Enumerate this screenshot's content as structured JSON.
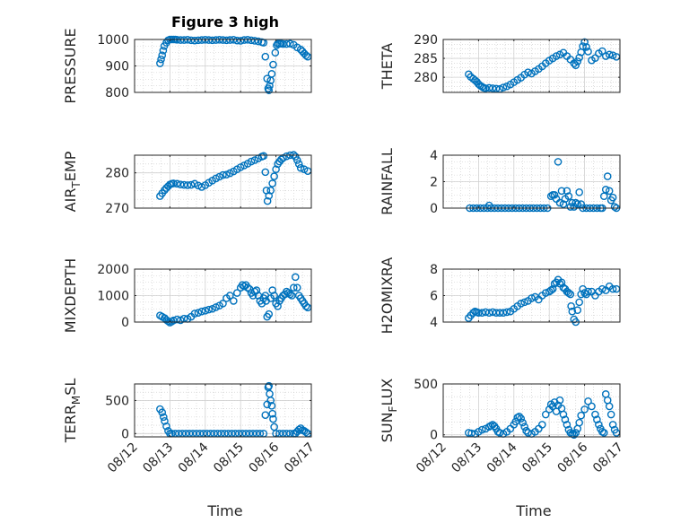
{
  "figure": {
    "title": "Figure 3 high",
    "xlabel": "Time"
  },
  "x_tick_labels": [
    "08/12",
    "08/13",
    "08/14",
    "08/15",
    "08/16",
    "08/17"
  ],
  "marker_color": "#0072BD",
  "chart_data": [
    {
      "type": "scatter",
      "ylabel": "PRESSURE",
      "ylabel_sub": "",
      "ylabel_suffix": "",
      "ylim": [
        800,
        1000
      ],
      "yticks": [
        800,
        900,
        1000
      ],
      "xlim": [
        0,
        5
      ],
      "x": [
        0.72,
        0.75,
        0.78,
        0.81,
        0.84,
        0.9,
        0.95,
        1.0,
        1.05,
        1.1,
        1.15,
        1.2,
        1.3,
        1.4,
        1.5,
        1.6,
        1.7,
        1.8,
        1.9,
        2.0,
        2.1,
        2.2,
        2.3,
        2.4,
        2.5,
        2.6,
        2.7,
        2.8,
        2.9,
        3.0,
        3.1,
        3.2,
        3.3,
        3.4,
        3.5,
        3.6,
        3.65,
        3.7,
        3.75,
        3.78,
        3.8,
        3.82,
        3.85,
        3.88,
        3.92,
        3.98,
        4.02,
        4.05,
        4.1,
        4.15,
        4.2,
        4.3,
        4.4,
        4.5,
        4.6,
        4.7,
        4.75,
        4.8,
        4.85,
        4.9
      ],
      "y": [
        910,
        925,
        940,
        958,
        975,
        988,
        997,
        1000,
        1000,
        1000,
        1000,
        999,
        998,
        998,
        999,
        997,
        996,
        997,
        998,
        999,
        998,
        997,
        998,
        999,
        998,
        997,
        998,
        999,
        996,
        995,
        998,
        999,
        997,
        995,
        993,
        990,
        988,
        935,
        852,
        815,
        808,
        825,
        845,
        870,
        905,
        950,
        978,
        984,
        984,
        984,
        983,
        983,
        984,
        980,
        970,
        962,
        955,
        947,
        940,
        935
      ]
    },
    {
      "type": "scatter",
      "ylabel": "THETA",
      "ylabel_sub": "",
      "ylabel_suffix": "",
      "ylim": [
        276,
        290
      ],
      "yticks": [
        280,
        285,
        290
      ],
      "xlim": [
        0,
        5
      ],
      "x": [
        0.72,
        0.78,
        0.85,
        0.9,
        0.95,
        1.0,
        1.05,
        1.1,
        1.15,
        1.2,
        1.3,
        1.4,
        1.5,
        1.6,
        1.7,
        1.8,
        1.9,
        2.0,
        2.1,
        2.2,
        2.3,
        2.4,
        2.5,
        2.6,
        2.7,
        2.8,
        2.9,
        3.0,
        3.1,
        3.2,
        3.3,
        3.4,
        3.5,
        3.6,
        3.7,
        3.75,
        3.8,
        3.85,
        3.9,
        3.95,
        4.0,
        4.05,
        4.1,
        4.2,
        4.3,
        4.4,
        4.5,
        4.6,
        4.7,
        4.8,
        4.9
      ],
      "y": [
        280.8,
        280.1,
        279.6,
        279.2,
        278.8,
        278.2,
        277.8,
        277.5,
        277.2,
        277.1,
        277.2,
        277.1,
        277.0,
        276.9,
        277.3,
        277.6,
        278.1,
        278.7,
        279.3,
        279.9,
        280.7,
        281.3,
        281.0,
        281.6,
        282.2,
        282.9,
        283.7,
        284.4,
        285.0,
        285.6,
        286.0,
        286.5,
        285.6,
        284.7,
        283.7,
        283.2,
        284.2,
        285.2,
        286.6,
        288.2,
        289.3,
        288.0,
        286.8,
        284.5,
        285.1,
        286.3,
        286.9,
        285.6,
        286.0,
        285.8,
        285.4
      ]
    },
    {
      "type": "scatter",
      "ylabel": "AIR",
      "ylabel_sub": "T",
      "ylabel_suffix": "EMP",
      "ylim": [
        270,
        285
      ],
      "yticks": [
        270,
        280
      ],
      "xlim": [
        0,
        5
      ],
      "x": [
        0.72,
        0.78,
        0.85,
        0.9,
        0.95,
        1.0,
        1.05,
        1.1,
        1.2,
        1.3,
        1.4,
        1.5,
        1.6,
        1.7,
        1.8,
        1.9,
        2.0,
        2.1,
        2.2,
        2.3,
        2.4,
        2.5,
        2.6,
        2.7,
        2.8,
        2.9,
        3.0,
        3.1,
        3.2,
        3.3,
        3.4,
        3.5,
        3.6,
        3.65,
        3.7,
        3.73,
        3.76,
        3.8,
        3.85,
        3.9,
        3.95,
        4.0,
        4.05,
        4.1,
        4.15,
        4.2,
        4.3,
        4.4,
        4.5,
        4.55,
        4.6,
        4.65,
        4.7,
        4.8,
        4.9
      ],
      "y": [
        273.4,
        274.2,
        275.1,
        275.7,
        276.2,
        276.7,
        276.9,
        277.0,
        276.9,
        276.7,
        276.6,
        276.5,
        276.6,
        276.9,
        276.4,
        276.0,
        276.5,
        277.2,
        277.8,
        278.4,
        278.9,
        279.4,
        279.5,
        279.9,
        280.4,
        281.0,
        281.6,
        282.1,
        282.6,
        283.2,
        283.6,
        284.1,
        284.6,
        284.8,
        280.2,
        275.0,
        272.0,
        273.5,
        275.0,
        277.0,
        279.0,
        281.0,
        282.5,
        283.2,
        283.8,
        284.2,
        284.7,
        285.0,
        285.1,
        284.6,
        283.6,
        282.5,
        281.4,
        281.0,
        280.5
      ]
    },
    {
      "type": "scatter",
      "ylabel": "RAINFALL",
      "ylabel_sub": "",
      "ylabel_suffix": "",
      "ylim": [
        0,
        4
      ],
      "yticks": [
        0,
        2,
        4
      ],
      "xlim": [
        0,
        5
      ],
      "x": [
        0.75,
        0.85,
        0.95,
        1.05,
        1.15,
        1.25,
        1.3,
        1.35,
        1.45,
        1.55,
        1.65,
        1.75,
        1.85,
        1.95,
        2.05,
        2.15,
        2.25,
        2.35,
        2.45,
        2.55,
        2.65,
        2.75,
        2.85,
        2.95,
        3.05,
        3.1,
        3.15,
        3.2,
        3.25,
        3.3,
        3.35,
        3.4,
        3.45,
        3.5,
        3.55,
        3.6,
        3.65,
        3.7,
        3.75,
        3.8,
        3.85,
        3.9,
        3.95,
        4.05,
        4.15,
        4.25,
        4.35,
        4.45,
        4.5,
        4.55,
        4.6,
        4.65,
        4.7,
        4.75,
        4.8,
        4.85,
        4.9
      ],
      "y": [
        0,
        0,
        0,
        0,
        0,
        0,
        0.2,
        0,
        0,
        0,
        0,
        0,
        0,
        0,
        0,
        0,
        0,
        0,
        0,
        0,
        0,
        0,
        0,
        0,
        0.9,
        1.0,
        1.0,
        0.7,
        3.5,
        0.4,
        1.3,
        0.3,
        0.7,
        1.3,
        0.9,
        0.1,
        0.4,
        0.1,
        0.4,
        0.3,
        1.2,
        0.3,
        0,
        0,
        0,
        0,
        0,
        0,
        0,
        0.9,
        1.4,
        2.4,
        1.3,
        0.6,
        0.8,
        0.1,
        0
      ]
    },
    {
      "type": "scatter",
      "ylabel": "MIXDEPTH",
      "ylabel_sub": "",
      "ylabel_suffix": "",
      "ylim": [
        0,
        2000
      ],
      "yticks": [
        0,
        1000,
        2000
      ],
      "xlim": [
        0,
        5
      ],
      "x": [
        0.72,
        0.78,
        0.85,
        0.9,
        0.95,
        1.0,
        1.05,
        1.1,
        1.2,
        1.3,
        1.4,
        1.5,
        1.6,
        1.7,
        1.8,
        1.9,
        2.0,
        2.1,
        2.2,
        2.3,
        2.4,
        2.5,
        2.6,
        2.7,
        2.8,
        2.9,
        3.0,
        3.05,
        3.1,
        3.15,
        3.2,
        3.25,
        3.3,
        3.35,
        3.4,
        3.45,
        3.5,
        3.55,
        3.6,
        3.65,
        3.7,
        3.72,
        3.75,
        3.8,
        3.85,
        3.9,
        3.95,
        4.0,
        4.05,
        4.1,
        4.15,
        4.2,
        4.25,
        4.3,
        4.35,
        4.4,
        4.45,
        4.5,
        4.55,
        4.6,
        4.65,
        4.7,
        4.75,
        4.8,
        4.85,
        4.9
      ],
      "y": [
        250,
        200,
        150,
        80,
        30,
        -20,
        20,
        60,
        100,
        70,
        130,
        120,
        200,
        320,
        350,
        400,
        430,
        470,
        500,
        560,
        620,
        700,
        900,
        1000,
        800,
        1100,
        1300,
        1400,
        1350,
        1400,
        1300,
        1250,
        1100,
        1000,
        1150,
        1200,
        1000,
        800,
        700,
        900,
        1000,
        800,
        200,
        300,
        900,
        1200,
        1000,
        700,
        600,
        800,
        900,
        1000,
        1050,
        1150,
        1100,
        1050,
        1000,
        1300,
        1700,
        1300,
        1000,
        900,
        800,
        700,
        600,
        550
      ]
    },
    {
      "type": "scatter",
      "ylabel": "H2OMIXRA",
      "ylabel_sub": "",
      "ylabel_suffix": "",
      "ylim": [
        4,
        8
      ],
      "yticks": [
        4,
        6,
        8
      ],
      "xlim": [
        0,
        5
      ],
      "x": [
        0.72,
        0.78,
        0.85,
        0.9,
        0.95,
        1.0,
        1.1,
        1.2,
        1.3,
        1.4,
        1.5,
        1.6,
        1.7,
        1.8,
        1.9,
        2.0,
        2.1,
        2.2,
        2.3,
        2.4,
        2.5,
        2.6,
        2.7,
        2.8,
        2.9,
        3.0,
        3.05,
        3.1,
        3.15,
        3.2,
        3.25,
        3.3,
        3.35,
        3.4,
        3.45,
        3.5,
        3.55,
        3.6,
        3.62,
        3.65,
        3.7,
        3.75,
        3.8,
        3.85,
        3.9,
        3.95,
        4.0,
        4.05,
        4.1,
        4.2,
        4.3,
        4.4,
        4.5,
        4.6,
        4.7,
        4.8,
        4.9
      ],
      "y": [
        4.3,
        4.5,
        4.7,
        4.8,
        4.75,
        4.7,
        4.7,
        4.75,
        4.7,
        4.75,
        4.7,
        4.7,
        4.7,
        4.75,
        4.8,
        5.0,
        5.2,
        5.4,
        5.5,
        5.6,
        5.8,
        5.9,
        5.7,
        6.0,
        6.2,
        6.3,
        6.4,
        6.5,
        6.9,
        7.0,
        7.2,
        6.9,
        7.0,
        6.6,
        6.5,
        6.3,
        6.2,
        6.1,
        5.2,
        4.8,
        4.2,
        4.0,
        4.9,
        5.5,
        6.1,
        6.5,
        6.2,
        6.1,
        6.3,
        6.3,
        6.0,
        6.3,
        6.5,
        6.4,
        6.7,
        6.5,
        6.5
      ]
    },
    {
      "type": "scatter",
      "ylabel": "TERR",
      "ylabel_sub": "M",
      "ylabel_suffix": "SL",
      "ylim": [
        -50,
        750
      ],
      "yticks": [
        0,
        500
      ],
      "xlim": [
        0,
        5
      ],
      "x": [
        0.72,
        0.78,
        0.82,
        0.85,
        0.9,
        0.95,
        1.0,
        1.05,
        1.15,
        1.25,
        1.35,
        1.45,
        1.55,
        1.65,
        1.75,
        1.85,
        1.95,
        2.05,
        2.15,
        2.25,
        2.35,
        2.45,
        2.55,
        2.65,
        2.75,
        2.85,
        2.95,
        3.05,
        3.15,
        3.25,
        3.35,
        3.45,
        3.55,
        3.65,
        3.7,
        3.75,
        3.78,
        3.8,
        3.82,
        3.85,
        3.88,
        3.9,
        3.92,
        3.95,
        4.0,
        4.1,
        4.2,
        4.3,
        4.4,
        4.5,
        4.55,
        4.6,
        4.65,
        4.7,
        4.75,
        4.8,
        4.85,
        4.9
      ],
      "y": [
        370,
        320,
        250,
        190,
        110,
        40,
        0,
        0,
        0,
        0,
        0,
        0,
        0,
        0,
        0,
        0,
        0,
        0,
        0,
        0,
        0,
        0,
        0,
        0,
        0,
        0,
        0,
        0,
        0,
        0,
        0,
        0,
        0,
        0,
        280,
        440,
        700,
        720,
        600,
        500,
        420,
        300,
        220,
        100,
        0,
        0,
        0,
        0,
        0,
        0,
        0,
        30,
        60,
        80,
        50,
        40,
        20,
        0
      ]
    },
    {
      "type": "scatter",
      "ylabel": "SUN",
      "ylabel_sub": "F",
      "ylabel_suffix": "LUX",
      "ylim": [
        -20,
        500
      ],
      "yticks": [
        0,
        500
      ],
      "xlim": [
        0,
        5
      ],
      "x": [
        0.72,
        0.8,
        0.9,
        1.0,
        1.1,
        1.2,
        1.3,
        1.35,
        1.4,
        1.45,
        1.5,
        1.55,
        1.6,
        1.7,
        1.8,
        1.9,
        2.0,
        2.05,
        2.1,
        2.15,
        2.2,
        2.25,
        2.3,
        2.35,
        2.4,
        2.5,
        2.6,
        2.7,
        2.8,
        2.9,
        3.0,
        3.05,
        3.1,
        3.15,
        3.2,
        3.25,
        3.3,
        3.35,
        3.4,
        3.45,
        3.5,
        3.55,
        3.6,
        3.65,
        3.7,
        3.75,
        3.8,
        3.85,
        3.9,
        4.0,
        4.1,
        4.2,
        4.3,
        4.35,
        4.4,
        4.45,
        4.5,
        4.55,
        4.6,
        4.65,
        4.7,
        4.75,
        4.8,
        4.85,
        4.9
      ],
      "y": [
        20,
        15,
        10,
        30,
        50,
        60,
        80,
        90,
        100,
        85,
        60,
        30,
        20,
        10,
        30,
        60,
        100,
        130,
        170,
        180,
        160,
        120,
        80,
        40,
        20,
        10,
        30,
        60,
        100,
        200,
        250,
        300,
        280,
        320,
        230,
        290,
        340,
        260,
        200,
        150,
        100,
        50,
        20,
        10,
        0,
        20,
        60,
        120,
        190,
        250,
        330,
        280,
        200,
        150,
        100,
        60,
        30,
        20,
        400,
        340,
        280,
        200,
        100,
        50,
        20
      ]
    }
  ]
}
